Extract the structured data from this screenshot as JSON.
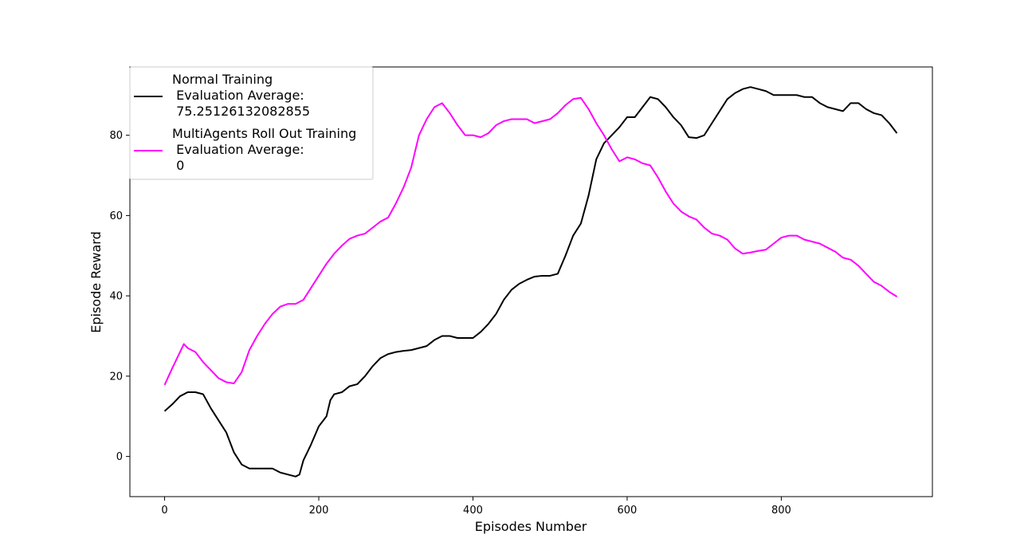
{
  "chart_data": {
    "type": "line",
    "xlabel": "Episodes Number",
    "ylabel": "Episode Reward",
    "xlim": [
      -45,
      996
    ],
    "ylim": [
      -10,
      97
    ],
    "xticks": [
      0,
      200,
      400,
      600,
      800
    ],
    "yticks": [
      0,
      20,
      40,
      60,
      80
    ],
    "grid": false,
    "legend_position": "top-left",
    "series": [
      {
        "name": "Normal Training\n Evaluation Average:\n 75.25126132082855",
        "color": "#000000",
        "points": [
          [
            0,
            11.3
          ],
          [
            10,
            13
          ],
          [
            20,
            15
          ],
          [
            30,
            16
          ],
          [
            40,
            16
          ],
          [
            50,
            15.5
          ],
          [
            60,
            12
          ],
          [
            70,
            9
          ],
          [
            80,
            6
          ],
          [
            90,
            1
          ],
          [
            100,
            -2
          ],
          [
            110,
            -3
          ],
          [
            130,
            -3
          ],
          [
            140,
            -3
          ],
          [
            150,
            -4
          ],
          [
            160,
            -4.5
          ],
          [
            170,
            -5
          ],
          [
            175,
            -4.5
          ],
          [
            180,
            -1
          ],
          [
            190,
            3
          ],
          [
            200,
            7.5
          ],
          [
            210,
            10
          ],
          [
            215,
            14
          ],
          [
            220,
            15.5
          ],
          [
            230,
            16
          ],
          [
            240,
            17.5
          ],
          [
            250,
            18
          ],
          [
            260,
            20
          ],
          [
            270,
            22.5
          ],
          [
            280,
            24.5
          ],
          [
            290,
            25.5
          ],
          [
            300,
            26
          ],
          [
            310,
            26.3
          ],
          [
            320,
            26.5
          ],
          [
            340,
            27.5
          ],
          [
            350,
            29
          ],
          [
            360,
            30
          ],
          [
            370,
            30
          ],
          [
            380,
            29.5
          ],
          [
            390,
            29.5
          ],
          [
            400,
            29.5
          ],
          [
            410,
            31
          ],
          [
            420,
            33
          ],
          [
            430,
            35.5
          ],
          [
            440,
            39
          ],
          [
            450,
            41.5
          ],
          [
            460,
            43
          ],
          [
            470,
            44
          ],
          [
            480,
            44.8
          ],
          [
            490,
            45
          ],
          [
            500,
            45
          ],
          [
            510,
            45.5
          ],
          [
            520,
            50
          ],
          [
            530,
            55
          ],
          [
            540,
            58
          ],
          [
            550,
            65
          ],
          [
            560,
            74
          ],
          [
            570,
            78
          ],
          [
            580,
            80
          ],
          [
            590,
            82
          ],
          [
            600,
            84.5
          ],
          [
            610,
            84.5
          ],
          [
            620,
            87
          ],
          [
            630,
            89.5
          ],
          [
            640,
            89
          ],
          [
            650,
            87
          ],
          [
            660,
            84.5
          ],
          [
            670,
            82.5
          ],
          [
            680,
            79.5
          ],
          [
            690,
            79.3
          ],
          [
            700,
            80
          ],
          [
            710,
            83
          ],
          [
            720,
            86
          ],
          [
            730,
            89
          ],
          [
            740,
            90.5
          ],
          [
            750,
            91.5
          ],
          [
            760,
            92
          ],
          [
            770,
            91.5
          ],
          [
            780,
            91
          ],
          [
            790,
            90
          ],
          [
            800,
            90
          ],
          [
            810,
            90
          ],
          [
            820,
            90
          ],
          [
            830,
            89.5
          ],
          [
            840,
            89.5
          ],
          [
            850,
            88
          ],
          [
            860,
            87
          ],
          [
            870,
            86.5
          ],
          [
            880,
            86
          ],
          [
            890,
            88
          ],
          [
            900,
            88
          ],
          [
            910,
            86.5
          ],
          [
            920,
            85.5
          ],
          [
            930,
            85
          ],
          [
            940,
            83
          ],
          [
            950,
            80.5
          ]
        ]
      },
      {
        "name": "MultiAgents Roll Out Training\n Evaluation Average:\n 0",
        "color": "#ff00ff",
        "points": [
          [
            0,
            17.8
          ],
          [
            10,
            22
          ],
          [
            20,
            26
          ],
          [
            25,
            28
          ],
          [
            30,
            27
          ],
          [
            40,
            26
          ],
          [
            50,
            23.5
          ],
          [
            60,
            21.5
          ],
          [
            70,
            19.5
          ],
          [
            80,
            18.5
          ],
          [
            90,
            18.2
          ],
          [
            100,
            21
          ],
          [
            110,
            26.5
          ],
          [
            120,
            30
          ],
          [
            130,
            33
          ],
          [
            140,
            35.5
          ],
          [
            150,
            37.3
          ],
          [
            160,
            38
          ],
          [
            170,
            38
          ],
          [
            180,
            39
          ],
          [
            190,
            42
          ],
          [
            200,
            45
          ],
          [
            210,
            48
          ],
          [
            220,
            50.5
          ],
          [
            230,
            52.5
          ],
          [
            240,
            54.2
          ],
          [
            250,
            55
          ],
          [
            260,
            55.5
          ],
          [
            270,
            57
          ],
          [
            280,
            58.5
          ],
          [
            290,
            59.5
          ],
          [
            300,
            63
          ],
          [
            310,
            67
          ],
          [
            320,
            72
          ],
          [
            330,
            80
          ],
          [
            340,
            84
          ],
          [
            350,
            87
          ],
          [
            360,
            88
          ],
          [
            370,
            85.5
          ],
          [
            380,
            82.5
          ],
          [
            390,
            80
          ],
          [
            400,
            80
          ],
          [
            410,
            79.5
          ],
          [
            420,
            80.5
          ],
          [
            430,
            82.5
          ],
          [
            440,
            83.5
          ],
          [
            450,
            84
          ],
          [
            460,
            84
          ],
          [
            470,
            84
          ],
          [
            480,
            83
          ],
          [
            490,
            83.5
          ],
          [
            500,
            84
          ],
          [
            510,
            85.5
          ],
          [
            520,
            87.5
          ],
          [
            530,
            89
          ],
          [
            540,
            89.3
          ],
          [
            550,
            86.5
          ],
          [
            560,
            83
          ],
          [
            570,
            80
          ],
          [
            580,
            76.5
          ],
          [
            590,
            73.5
          ],
          [
            600,
            74.5
          ],
          [
            610,
            74
          ],
          [
            620,
            73
          ],
          [
            630,
            72.5
          ],
          [
            640,
            69.5
          ],
          [
            650,
            66
          ],
          [
            660,
            63
          ],
          [
            670,
            61
          ],
          [
            680,
            59.8
          ],
          [
            690,
            59
          ],
          [
            700,
            57
          ],
          [
            710,
            55.5
          ],
          [
            720,
            55
          ],
          [
            730,
            54
          ],
          [
            740,
            51.8
          ],
          [
            750,
            50.5
          ],
          [
            760,
            50.8
          ],
          [
            770,
            51.2
          ],
          [
            780,
            51.5
          ],
          [
            790,
            53
          ],
          [
            800,
            54.5
          ],
          [
            810,
            55
          ],
          [
            820,
            55
          ],
          [
            830,
            54
          ],
          [
            840,
            53.5
          ],
          [
            850,
            53
          ],
          [
            860,
            52
          ],
          [
            870,
            51
          ],
          [
            880,
            49.5
          ],
          [
            890,
            49
          ],
          [
            900,
            47.5
          ],
          [
            910,
            45.5
          ],
          [
            920,
            43.5
          ],
          [
            930,
            42.5
          ],
          [
            940,
            41
          ],
          [
            950,
            39.8
          ]
        ]
      }
    ]
  }
}
